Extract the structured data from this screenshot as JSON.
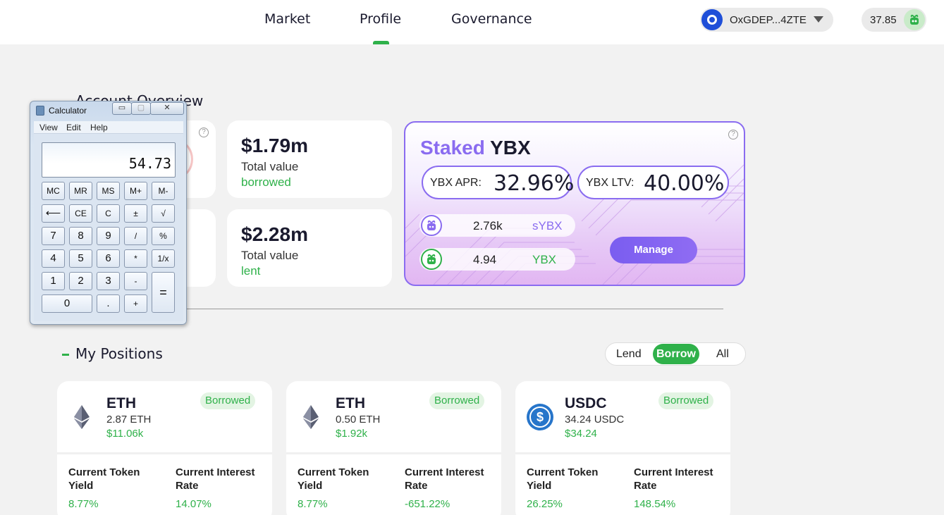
{
  "nav": {
    "tabs": [
      "Market",
      "Profile",
      "Governance"
    ],
    "active_tab": "Profile"
  },
  "wallet": {
    "address": "OxGDEP...4ZTE"
  },
  "balance": {
    "value": "37.85"
  },
  "account_overview": {
    "title": "Account Overview",
    "borrowed": {
      "amount": "$1.79m",
      "label1": "Total value",
      "label2": "borrowed"
    },
    "lent": {
      "amount": "$2.28m",
      "label1": "Total value",
      "label2": "lent"
    }
  },
  "staked": {
    "title_part1": "Staked",
    "title_part2": "YBX",
    "apr_label": "YBX APR:",
    "apr_value": "32.96%",
    "ltv_label": "YBX LTV:",
    "ltv_value": "40.00%",
    "tokens": [
      {
        "amount": "2.76k",
        "symbol": "sYBX"
      },
      {
        "amount": "4.94",
        "symbol": "YBX"
      }
    ],
    "manage_label": "Manage"
  },
  "positions": {
    "title": "My Positions",
    "filters": [
      "Lend",
      "Borrow",
      "All"
    ],
    "active_filter": "Borrow",
    "items": [
      {
        "symbol": "ETH",
        "qty": "2.87 ETH",
        "usd": "$11.06k",
        "badge": "Borrowed",
        "h1": "Current Token Yield",
        "h2": "Current Interest Rate",
        "v1": "8.77%",
        "v2": "14.07%"
      },
      {
        "symbol": "ETH",
        "qty": "0.50 ETH",
        "usd": "$1.92k",
        "badge": "Borrowed",
        "h1": "Current Token Yield",
        "h2": "Current Interest Rate",
        "v1": "8.77%",
        "v2": "-651.22%"
      },
      {
        "symbol": "USDC",
        "qty": "34.24 USDC",
        "usd": "$34.24",
        "badge": "Borrowed",
        "h1": "Current Token Yield",
        "h2": "Current Interest Rate",
        "v1": "26.25%",
        "v2": "148.54%"
      }
    ]
  },
  "calculator": {
    "title": "Calculator",
    "menus": [
      "View",
      "Edit",
      "Help"
    ],
    "display": "54.73",
    "keys": {
      "row1": [
        "MC",
        "MR",
        "MS",
        "M+",
        "M-"
      ],
      "row2": [
        "⟵",
        "CE",
        "C",
        "±",
        "√"
      ],
      "row3": [
        "7",
        "8",
        "9",
        "/",
        "%"
      ],
      "row4": [
        "4",
        "5",
        "6",
        "*",
        "1/x"
      ],
      "row5": [
        "1",
        "2",
        "3",
        "-"
      ],
      "row6": [
        "0",
        ".",
        "+"
      ],
      "equals": "="
    }
  },
  "colors": {
    "green": "#2fb14a",
    "purple": "#8a6cf0"
  }
}
